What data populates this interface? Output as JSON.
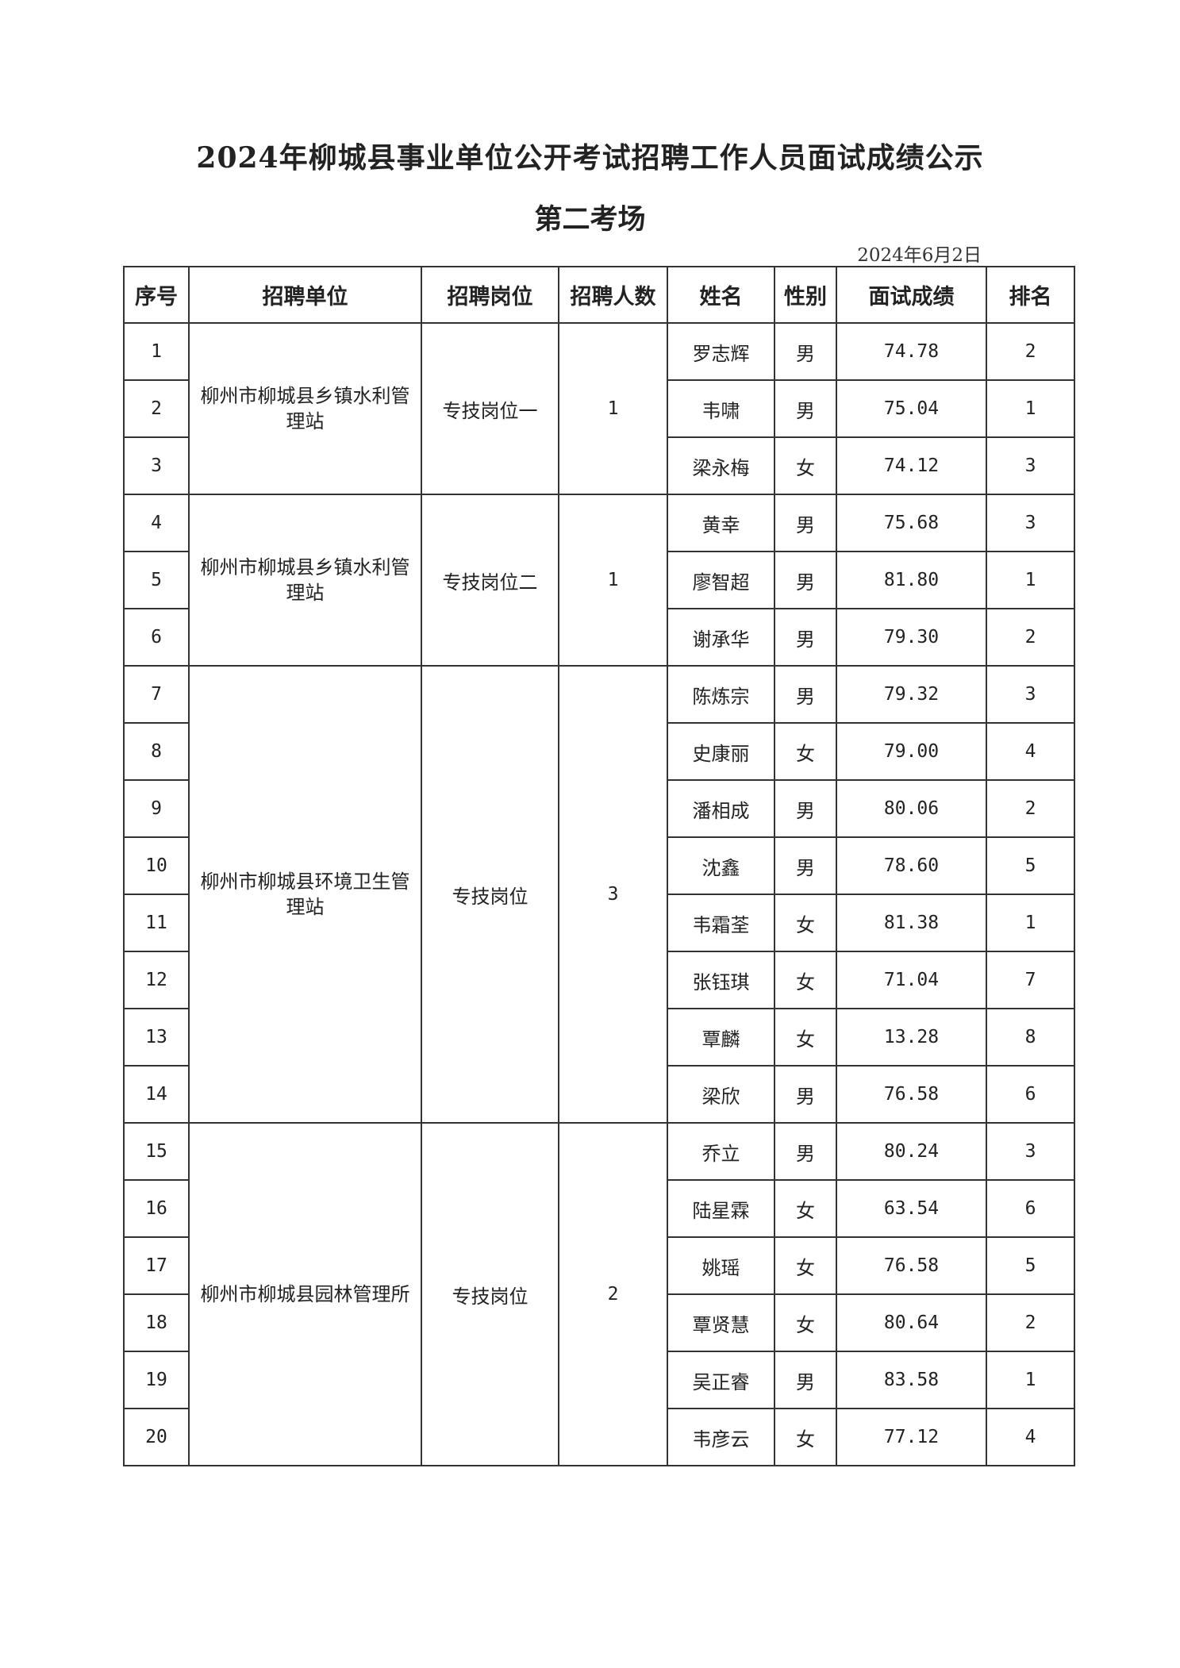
{
  "title": "2024年柳城县事业单位公开考试招聘工作人员面试成绩公示",
  "subtitle": "第二考场",
  "date": "2024年6月2日",
  "headers": [
    "序号",
    "招聘单位",
    "招聘岗位",
    "招聘人数",
    "姓名",
    "性别",
    "面试成绩",
    "排名"
  ],
  "groups": [
    {
      "unit": "柳州市柳城县乡镇水利管理站",
      "post": "专技岗位一",
      "count": "1",
      "rows": [
        {
          "no": "1",
          "name": "罗志辉",
          "gender": "男",
          "score": "74.78",
          "rank": "2"
        },
        {
          "no": "2",
          "name": "韦啸",
          "gender": "男",
          "score": "75.04",
          "rank": "1"
        },
        {
          "no": "3",
          "name": "梁永梅",
          "gender": "女",
          "score": "74.12",
          "rank": "3"
        }
      ]
    },
    {
      "unit": "柳州市柳城县乡镇水利管理站",
      "post": "专技岗位二",
      "count": "1",
      "rows": [
        {
          "no": "4",
          "name": "黄幸",
          "gender": "男",
          "score": "75.68",
          "rank": "3"
        },
        {
          "no": "5",
          "name": "廖智超",
          "gender": "男",
          "score": "81.80",
          "rank": "1"
        },
        {
          "no": "6",
          "name": "谢承华",
          "gender": "男",
          "score": "79.30",
          "rank": "2"
        }
      ]
    },
    {
      "unit": "柳州市柳城县环境卫生管理站",
      "post": "专技岗位",
      "count": "3",
      "rows": [
        {
          "no": "7",
          "name": "陈炼宗",
          "gender": "男",
          "score": "79.32",
          "rank": "3"
        },
        {
          "no": "8",
          "name": "史康丽",
          "gender": "女",
          "score": "79.00",
          "rank": "4"
        },
        {
          "no": "9",
          "name": "潘相成",
          "gender": "男",
          "score": "80.06",
          "rank": "2"
        },
        {
          "no": "10",
          "name": "沈鑫",
          "gender": "男",
          "score": "78.60",
          "rank": "5"
        },
        {
          "no": "11",
          "name": "韦霜荃",
          "gender": "女",
          "score": "81.38",
          "rank": "1"
        },
        {
          "no": "12",
          "name": "张钰琪",
          "gender": "女",
          "score": "71.04",
          "rank": "7"
        },
        {
          "no": "13",
          "name": "覃麟",
          "gender": "女",
          "score": "13.28",
          "rank": "8"
        },
        {
          "no": "14",
          "name": "梁欣",
          "gender": "男",
          "score": "76.58",
          "rank": "6"
        }
      ]
    },
    {
      "unit": "柳州市柳城县园林管理所",
      "post": "专技岗位",
      "count": "2",
      "rows": [
        {
          "no": "15",
          "name": "乔立",
          "gender": "男",
          "score": "80.24",
          "rank": "3"
        },
        {
          "no": "16",
          "name": "陆星霖",
          "gender": "女",
          "score": "63.54",
          "rank": "6"
        },
        {
          "no": "17",
          "name": "姚瑶",
          "gender": "女",
          "score": "76.58",
          "rank": "5"
        },
        {
          "no": "18",
          "name": "覃贤慧",
          "gender": "女",
          "score": "80.64",
          "rank": "2"
        },
        {
          "no": "19",
          "name": "吴正睿",
          "gender": "男",
          "score": "83.58",
          "rank": "1"
        },
        {
          "no": "20",
          "name": "韦彦云",
          "gender": "女",
          "score": "77.12",
          "rank": "4"
        }
      ]
    }
  ]
}
